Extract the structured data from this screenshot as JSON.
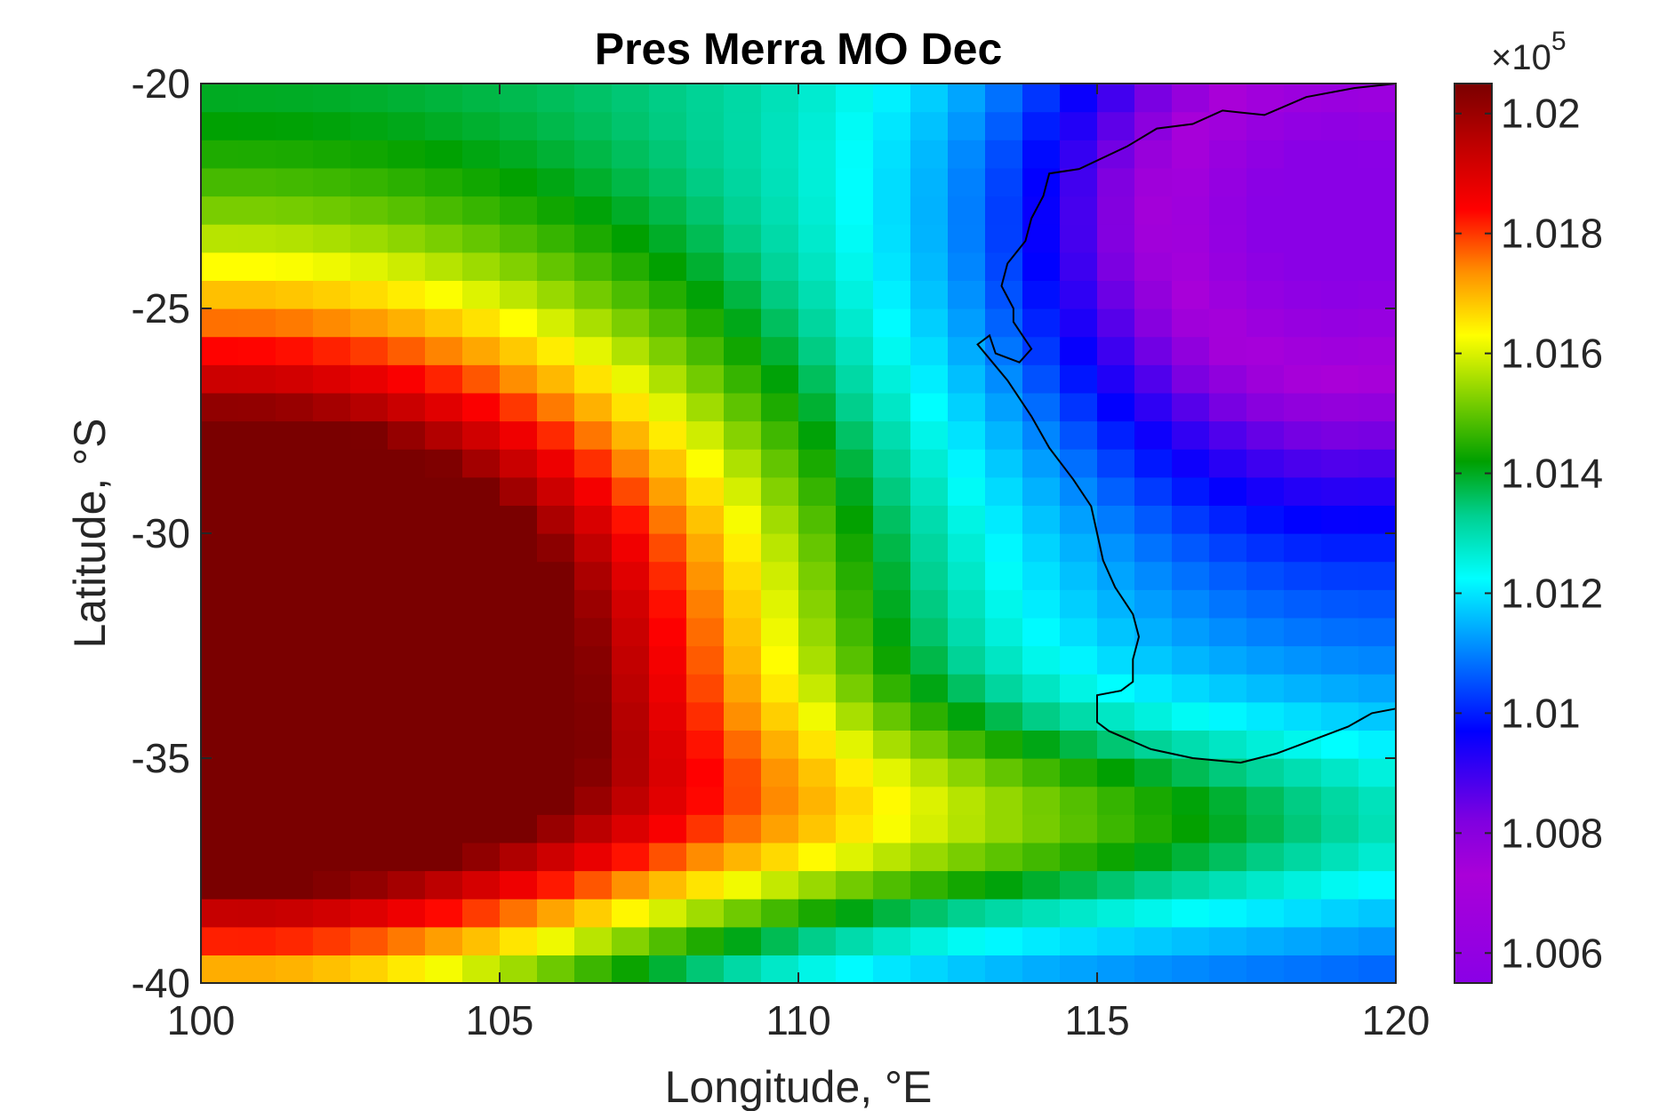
{
  "chart_data": {
    "type": "heatmap",
    "title": "Pres Merra MO Dec",
    "xlabel": "Longitude, °E",
    "ylabel": "Latitude, °S",
    "xlim": [
      100,
      120
    ],
    "ylim": [
      -40,
      -20
    ],
    "xticks": [
      100,
      105,
      110,
      115,
      120
    ],
    "yticks": [
      -20,
      -25,
      -30,
      -35,
      -40
    ],
    "xtick_labels": [
      "100",
      "105",
      "110",
      "115",
      "120"
    ],
    "ytick_labels": [
      "-20",
      "-25",
      "-30",
      "-35",
      "-40"
    ],
    "grid": false,
    "colormap": "jet-like rainbow (violet → blue → cyan → green → yellow → red → dark red)",
    "colorbar": {
      "exponent_label": "×10",
      "exponent_power": "5",
      "range": [
        1.0055,
        1.0205
      ],
      "ticks": [
        1.006,
        1.008,
        1.01,
        1.012,
        1.014,
        1.016,
        1.018,
        1.02
      ],
      "tick_labels": [
        "1.006",
        "1.008",
        "1.01",
        "1.012",
        "1.014",
        "1.016",
        "1.018",
        "1.02"
      ]
    },
    "grid_resolution_deg": 0.625,
    "field_description": "Gridded sea-level pressure (Pa ×10^5). High pressure ~1.0203 centered near 101°E, 33°S; low ~1.0060 over land near 118°E, 23°S; steep gradient band along the west Australian coast.",
    "field_anchors": [
      {
        "lon": 101,
        "lat": -33,
        "value": 1.0203
      },
      {
        "lon": 118,
        "lat": -23,
        "value": 1.006
      },
      {
        "lon": 110,
        "lat": -30,
        "value": 1.0165
      },
      {
        "lon": 115,
        "lat": -32,
        "value": 1.014
      },
      {
        "lon": 119,
        "lat": -37,
        "value": 1.0158
      },
      {
        "lon": 106,
        "lat": -20,
        "value": 1.0135
      }
    ]
  }
}
